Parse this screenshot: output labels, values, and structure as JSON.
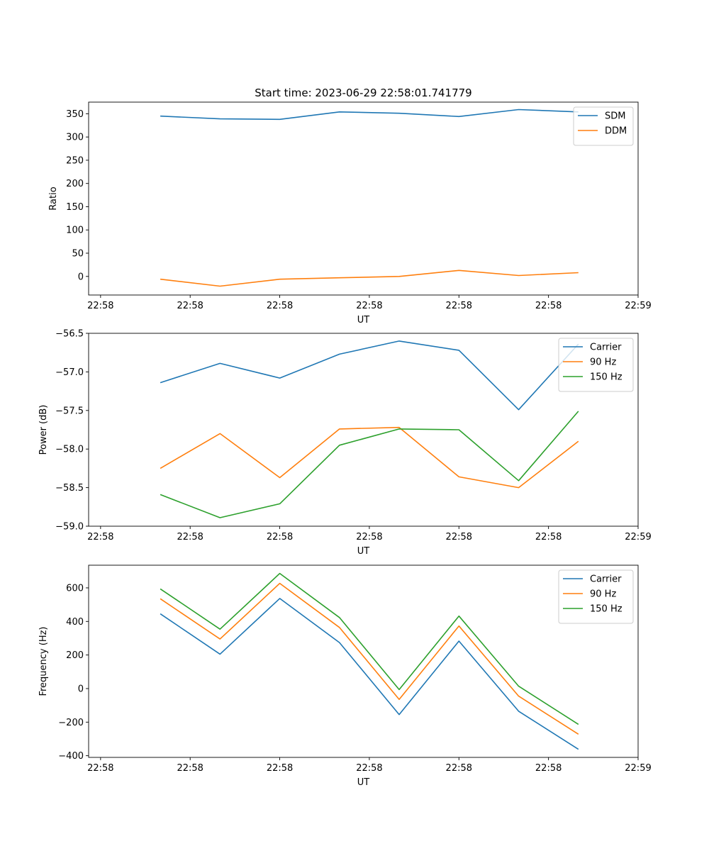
{
  "figure_title": "Start time: 2023-06-29 22:58:01.741779",
  "colors": {
    "blue": "#1f77b4",
    "orange": "#ff7f0e",
    "green": "#2ca02c"
  },
  "chart_data": [
    {
      "type": "line",
      "title": "Start time: 2023-06-29 22:58:01.741779",
      "xlabel": "UT",
      "ylabel": "Ratio",
      "x": [
        1,
        2,
        3,
        4,
        5,
        6,
        7,
        8
      ],
      "x_ticks": [
        0,
        1.5,
        3,
        4.5,
        6,
        7.5,
        9
      ],
      "x_tick_labels": [
        "22:58",
        "22:58",
        "22:58",
        "22:58",
        "22:58",
        "22:58",
        "22:59"
      ],
      "xlim": [
        -0.2,
        9.0
      ],
      "ylim": [
        -40,
        375
      ],
      "y_ticks": [
        0,
        50,
        100,
        150,
        200,
        250,
        300,
        350
      ],
      "y_tick_labels": [
        "0",
        "50",
        "100",
        "150",
        "200",
        "250",
        "300",
        "350"
      ],
      "legend": "top-right",
      "grid": false,
      "series": [
        {
          "name": "SDM",
          "color": "#1f77b4",
          "values": [
            345,
            339,
            338,
            354,
            351,
            344,
            359,
            354
          ]
        },
        {
          "name": "DDM",
          "color": "#ff7f0e",
          "values": [
            -6,
            -21,
            -6,
            -3,
            0,
            13,
            2,
            8
          ]
        }
      ]
    },
    {
      "type": "line",
      "title": "",
      "xlabel": "UT",
      "ylabel": "Power (dB)",
      "x": [
        1,
        2,
        3,
        4,
        5,
        6,
        7,
        8
      ],
      "x_ticks": [
        0,
        1.5,
        3,
        4.5,
        6,
        7.5,
        9
      ],
      "x_tick_labels": [
        "22:58",
        "22:58",
        "22:58",
        "22:58",
        "22:58",
        "22:58",
        "22:59"
      ],
      "xlim": [
        -0.2,
        9.0
      ],
      "ylim": [
        -59.0,
        -56.5
      ],
      "y_ticks": [
        -59.0,
        -58.5,
        -58.0,
        -57.5,
        -57.0,
        -56.5
      ],
      "y_tick_labels": [
        "−59.0",
        "−58.5",
        "−58.0",
        "−57.5",
        "−57.0",
        "−56.5"
      ],
      "legend": "top-right",
      "grid": false,
      "series": [
        {
          "name": "Carrier",
          "color": "#1f77b4",
          "values": [
            -57.14,
            -56.89,
            -57.08,
            -56.77,
            -56.6,
            -56.72,
            -57.49,
            -56.64
          ]
        },
        {
          "name": "90 Hz",
          "color": "#ff7f0e",
          "values": [
            -58.25,
            -57.8,
            -58.37,
            -57.74,
            -57.72,
            -58.36,
            -58.5,
            -57.9
          ]
        },
        {
          "name": "150 Hz",
          "color": "#2ca02c",
          "values": [
            -58.59,
            -58.89,
            -58.71,
            -57.95,
            -57.74,
            -57.75,
            -58.41,
            -57.51
          ]
        }
      ]
    },
    {
      "type": "line",
      "title": "",
      "xlabel": "UT",
      "ylabel": "Frequency (Hz)",
      "x": [
        1,
        2,
        3,
        4,
        5,
        6,
        7,
        8
      ],
      "x_ticks": [
        0,
        1.5,
        3,
        4.5,
        6,
        7.5,
        9
      ],
      "x_tick_labels": [
        "22:58",
        "22:58",
        "22:58",
        "22:58",
        "22:58",
        "22:58",
        "22:59"
      ],
      "xlim": [
        -0.2,
        9.0
      ],
      "ylim": [
        -410,
        735
      ],
      "y_ticks": [
        -400,
        -200,
        0,
        200,
        400,
        600
      ],
      "y_tick_labels": [
        "−400",
        "−200",
        "0",
        "200",
        "400",
        "600"
      ],
      "legend": "top-right",
      "grid": false,
      "series": [
        {
          "name": "Carrier",
          "color": "#1f77b4",
          "values": [
            445,
            205,
            537,
            274,
            -155,
            283,
            -135,
            -362
          ]
        },
        {
          "name": "90 Hz",
          "color": "#ff7f0e",
          "values": [
            535,
            295,
            627,
            364,
            -65,
            373,
            -45,
            -272
          ]
        },
        {
          "name": "150 Hz",
          "color": "#2ca02c",
          "values": [
            594,
            354,
            686,
            423,
            -6,
            432,
            14,
            -213
          ]
        }
      ]
    }
  ]
}
